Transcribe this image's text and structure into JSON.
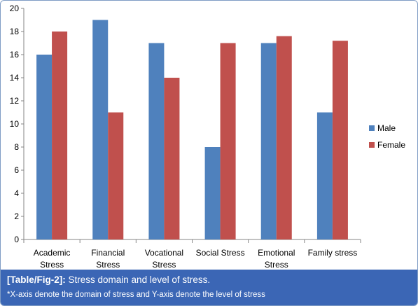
{
  "chart_data": {
    "type": "bar",
    "categories": [
      [
        "Academic",
        "Stress"
      ],
      [
        "Financial",
        "Stress"
      ],
      [
        "Vocational",
        "Stress"
      ],
      [
        "Social Stress"
      ],
      [
        "Emotional",
        "Stress"
      ],
      [
        "Family stress"
      ]
    ],
    "series": [
      {
        "name": "Male",
        "color": "#4f81bd",
        "values": [
          16,
          19,
          17,
          8,
          17,
          11
        ]
      },
      {
        "name": "Female",
        "color": "#c0504d",
        "values": [
          18,
          11,
          14,
          17,
          17.6,
          17.2
        ]
      }
    ],
    "ylim": [
      0,
      20
    ],
    "yticks": [
      0,
      2,
      4,
      6,
      8,
      10,
      12,
      14,
      16,
      18,
      20
    ],
    "grid": false,
    "legend": "right"
  },
  "caption": {
    "label": "[Table/Fig-2]:",
    "text": "Stress domain and level of stress.",
    "note": "*X-axis denote the domain of stress and Y-axis denote the level of stress"
  }
}
